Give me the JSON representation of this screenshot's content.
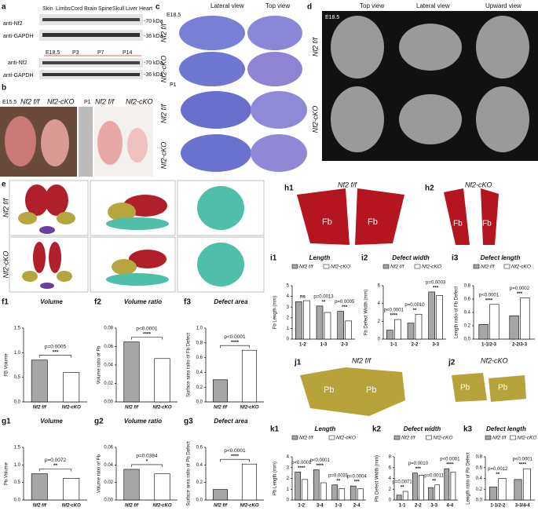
{
  "figure": {
    "a": {
      "label": "a",
      "tissues": [
        "Skin",
        "Limbs",
        "Cord",
        "Brain",
        "Spine",
        "Skull",
        "Liver",
        "Heart"
      ],
      "blot1": [
        "anti-Nf2",
        "anti-GAPDH"
      ],
      "markers1": [
        "-70 kDa",
        "-36 kDa"
      ],
      "stages": [
        "E18.5",
        "P3",
        "P7",
        "P14"
      ],
      "blot2": [
        "anti-Nf2",
        "anti-GAPDH"
      ],
      "markers2": [
        "-70 kDa",
        "-36 kDa"
      ]
    },
    "b": {
      "label": "b",
      "stage1": "E15.5",
      "stage2": "P1",
      "genotypes": [
        "Nf2 f/f",
        "Nf2-cKO",
        "Nf2 f/f",
        "Nf2-cKO"
      ]
    },
    "c": {
      "label": "c",
      "stage1": "E18.5",
      "stage2": "P1",
      "views": [
        "Lateral view",
        "Top view"
      ],
      "rows": [
        "Nf2 f/f",
        "Nf2-cKO",
        "Nf2 f/f",
        "Nf2-cKO"
      ]
    },
    "d": {
      "label": "d",
      "stage": "E18.5",
      "views": [
        "Top view",
        "Lateral view",
        "Upward view"
      ],
      "rows": [
        "Nf2 f/f",
        "Nf2-cKO"
      ]
    },
    "e": {
      "label": "e",
      "rows": [
        "Nf2 f/f",
        "Nf2-cKO"
      ]
    },
    "h": [
      {
        "label": "h1",
        "title": "Nf2 f/f",
        "region": "Fb"
      },
      {
        "label": "h2",
        "title": "Nf2-cKO",
        "region": "Fb"
      }
    ],
    "j": [
      {
        "label": "j1",
        "title": "Nf2 f/f",
        "region": "Pb"
      },
      {
        "label": "j2",
        "title": "Nf2-cKO",
        "region": "Pb"
      }
    ]
  },
  "chart_data": [
    {
      "panel": "f1",
      "type": "bar",
      "title": "Volume",
      "ylabel": "FB Volume",
      "categories": [
        "Nf2 f/f",
        "Nf2-cKO"
      ],
      "values": [
        0.85,
        0.6
      ],
      "colors": [
        "#a6a6a6",
        "#ffffff"
      ],
      "ylim": [
        0,
        1.5
      ],
      "yticks": [
        {
          "value": 0,
          "label": "0.0"
        },
        0.5,
        {
          "value": 1,
          "label": "1.0"
        },
        1.5
      ],
      "annotations": [
        "p=0.0005",
        "***"
      ]
    },
    {
      "panel": "f2",
      "type": "bar",
      "title": "Volume ratio",
      "ylabel": "Volume ratio of Fb",
      "categories": [
        "Nf2 f/f",
        "Nf2-cKO"
      ],
      "values": [
        0.065,
        0.047
      ],
      "colors": [
        "#a6a6a6",
        "#ffffff"
      ],
      "ylim": [
        0,
        0.08
      ],
      "yticks": [
        {
          "value": 0,
          "label": "0.00"
        },
        0.02,
        0.04,
        0.06,
        0.08
      ],
      "annotations": [
        "p<0.0001",
        "****"
      ]
    },
    {
      "panel": "f3",
      "type": "bar",
      "title": "Defect area",
      "ylabel": "Surface area ratio of Fb Defect",
      "categories": [
        "Nf2 f/f",
        "Nf2-cKO"
      ],
      "values": [
        0.3,
        0.7
      ],
      "colors": [
        "#a6a6a6",
        "#ffffff"
      ],
      "ylim": [
        0,
        1
      ],
      "yticks": [
        {
          "value": 0,
          "label": "0.0"
        },
        0.2,
        0.4,
        0.6,
        0.8,
        {
          "value": 1,
          "label": "1.0"
        }
      ],
      "annotations": [
        "p<0.0001",
        "****"
      ]
    },
    {
      "panel": "g1",
      "type": "bar",
      "title": "Volume",
      "ylabel": "Pb Volume",
      "categories": [
        "Nf2 f/f",
        "Nf2-cKO"
      ],
      "values": [
        0.75,
        0.62
      ],
      "colors": [
        "#a6a6a6",
        "#ffffff"
      ],
      "ylim": [
        0,
        1.5
      ],
      "yticks": [
        {
          "value": 0,
          "label": "0.0"
        },
        0.5,
        {
          "value": 1,
          "label": "1.0"
        },
        1.5
      ],
      "annotations": [
        "p=0.0072",
        "**"
      ]
    },
    {
      "panel": "g2",
      "type": "bar",
      "title": "Volume ratio",
      "ylabel": "Volume ratio of Pb",
      "categories": [
        "Nf2 f/f",
        "Nf2-cKO"
      ],
      "values": [
        0.035,
        0.03
      ],
      "colors": [
        "#a6a6a6",
        "#ffffff"
      ],
      "ylim": [
        0,
        0.06
      ],
      "yticks": [
        {
          "value": 0,
          "label": "0.00"
        },
        0.02,
        0.04,
        0.06
      ],
      "annotations": [
        "p=0.0384",
        "*"
      ]
    },
    {
      "panel": "g3",
      "type": "bar",
      "title": "Defect area",
      "ylabel": "Surface area ratio of Pb Defect",
      "categories": [
        "Nf2 f/f",
        "Nf2-cKO"
      ],
      "values": [
        0.12,
        0.41
      ],
      "colors": [
        "#a6a6a6",
        "#ffffff"
      ],
      "ylim": [
        0,
        0.6
      ],
      "yticks": [
        {
          "value": 0,
          "label": "0.0"
        },
        0.2,
        0.4,
        0.6
      ],
      "annotations": [
        "p<0.0001",
        "****"
      ]
    },
    {
      "panel": "i1",
      "type": "bar",
      "title": "Length",
      "ylabel": "Fb Length (mm)",
      "categories": [
        "1-2",
        "1-3",
        "2-3"
      ],
      "series": [
        {
          "name": "Nf2 f/f",
          "color": "#a6a6a6",
          "values": [
            3.5,
            3.1,
            2.6
          ]
        },
        {
          "name": "Nf2-cKO",
          "color": "#ffffff",
          "values": [
            3.6,
            2.5,
            1.7
          ]
        }
      ],
      "ylim": [
        0,
        5
      ],
      "yticks": [
        0,
        1,
        2,
        3,
        4,
        5
      ],
      "annotations": [
        [
          "ns"
        ],
        [
          "p=0.0013",
          "**"
        ],
        [
          "p=0.0005",
          "***"
        ]
      ]
    },
    {
      "panel": "i2",
      "type": "bar",
      "title": "Defect width",
      "ylabel": "Fb Defect Width (mm)",
      "categories": [
        "1-1",
        "2-2",
        "3-3"
      ],
      "series": [
        {
          "name": "Nf2 f/f",
          "color": "#a6a6a6",
          "values": [
            1.0,
            1.8,
            5.3
          ]
        },
        {
          "name": "Nf2-cKO",
          "color": "#ffffff",
          "values": [
            2.2,
            2.8,
            4.9
          ]
        }
      ],
      "ylim": [
        0,
        6
      ],
      "yticks": [
        0,
        2,
        4,
        6
      ],
      "annotations": [
        [
          "p<0.0001",
          "****"
        ],
        [
          "p=0.0010",
          "**"
        ],
        [
          "p=0.0003",
          "***"
        ]
      ]
    },
    {
      "panel": "i3",
      "type": "bar",
      "title": "Defect length",
      "ylabel": "Length ratio of Fb Defect",
      "categories": [
        "1-1/2-3",
        "2-2/3-3"
      ],
      "series": [
        {
          "name": "Nf2 f/f",
          "color": "#a6a6a6",
          "values": [
            0.22,
            0.35
          ]
        },
        {
          "name": "Nf2-cKO",
          "color": "#ffffff",
          "values": [
            0.52,
            0.62
          ]
        }
      ],
      "ylim": [
        0,
        0.8
      ],
      "yticks": [
        {
          "value": 0,
          "label": "0.0"
        },
        0.2,
        0.4,
        0.6,
        0.8
      ],
      "annotations": [
        [
          "p<0.0001",
          "****"
        ],
        [
          "p=0.0002",
          "***"
        ]
      ]
    },
    {
      "panel": "k1",
      "type": "bar",
      "title": "Length",
      "ylabel": "Pb Length (mm)",
      "categories": [
        "1-2",
        "3-4",
        "1-3",
        "2-4"
      ],
      "series": [
        {
          "name": "Nf2 f/f",
          "color": "#a6a6a6",
          "values": [
            2.6,
            2.8,
            1.4,
            1.3
          ]
        },
        {
          "name": "Nf2-cKO",
          "color": "#ffffff",
          "values": [
            1.9,
            1.6,
            1.05,
            1.05
          ]
        }
      ],
      "ylim": [
        0,
        4
      ],
      "yticks": [
        0,
        1,
        2,
        3,
        4
      ],
      "annotations": [
        [
          "p<0.0001",
          "****"
        ],
        [
          "p<0.0001",
          "****"
        ],
        [
          "p=0.0031",
          "**"
        ],
        [
          "p=0.0004",
          "***"
        ]
      ]
    },
    {
      "panel": "k2",
      "type": "bar",
      "title": "Defect width",
      "ylabel": "Pb Defect Width (mm)",
      "categories": [
        "1-1",
        "2-2",
        "3-3",
        "4-4"
      ],
      "series": [
        {
          "name": "Nf2 f/f",
          "color": "#a6a6a6",
          "values": [
            0.9,
            5.0,
            2.3,
            5.8
          ]
        },
        {
          "name": "Nf2-cKO",
          "color": "#ffffff",
          "values": [
            1.6,
            4.6,
            2.8,
            5.2
          ]
        }
      ],
      "ylim": [
        0,
        8
      ],
      "yticks": [
        0,
        2,
        4,
        6,
        8
      ],
      "annotations": [
        [
          "p=0.0071",
          "**"
        ],
        [
          "p=0.0010",
          "***"
        ],
        [
          "p=0.0011",
          "**"
        ],
        [
          "p<0.0001",
          "****"
        ]
      ]
    },
    {
      "panel": "k3",
      "type": "bar",
      "title": "Defect length",
      "ylabel": "Length ratio of Pb Defect",
      "categories": [
        "1-1/2-2",
        "3-3/4-4"
      ],
      "series": [
        {
          "name": "Nf2 f/f",
          "color": "#a6a6a6",
          "values": [
            0.24,
            0.38
          ]
        },
        {
          "name": "Nf2-cKO",
          "color": "#ffffff",
          "values": [
            0.4,
            0.58
          ]
        }
      ],
      "ylim": [
        0,
        0.8
      ],
      "yticks": [
        {
          "value": 0,
          "label": "0.0"
        },
        0.2,
        0.4,
        0.6,
        0.8
      ],
      "annotations": [
        [
          "p=0.0012",
          "**"
        ],
        [
          "p<0.0001",
          "****"
        ]
      ]
    }
  ]
}
